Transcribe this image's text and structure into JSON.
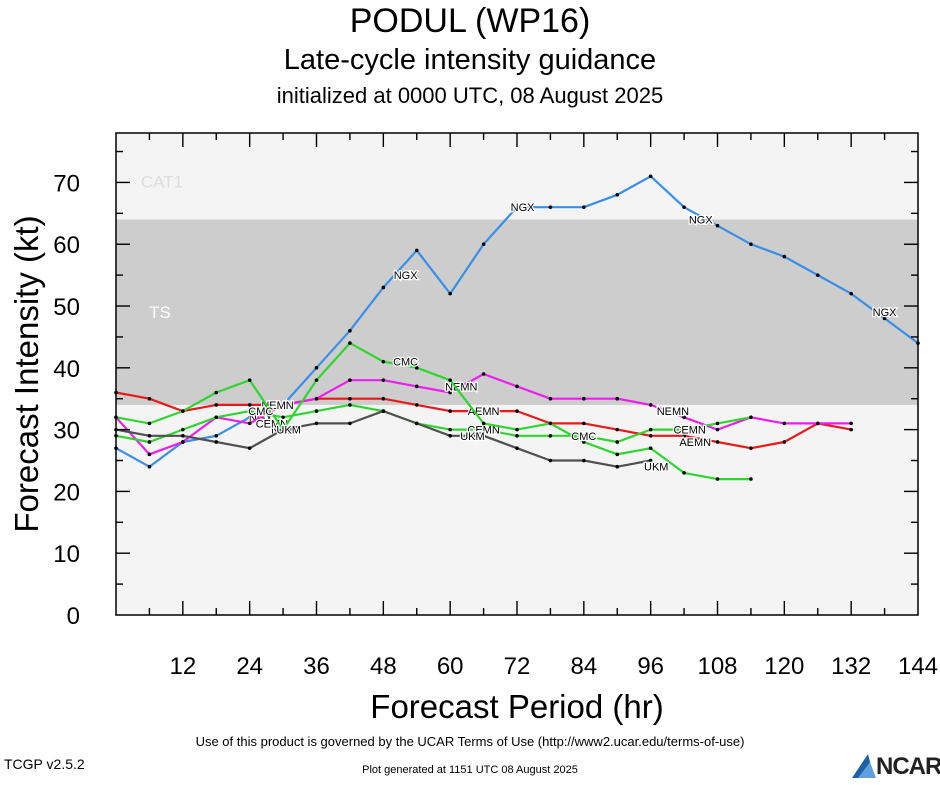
{
  "header": {
    "title": "PODUL (WP16)",
    "subtitle": "Late-cycle intensity guidance",
    "init": "initialized at 0000 UTC, 08 August 2025"
  },
  "footer": {
    "terms": "Use of this product is governed by the UCAR Terms of Use (http://www2.ucar.edu/terms-of-use)",
    "generated": "Plot generated at 1151 UTC   08 August 2025",
    "version": "TCGP v2.5.2",
    "logo": "NCAR"
  },
  "chart_data": {
    "type": "line",
    "xlabel": "Forecast Period (hr)",
    "ylabel": "Forecast Intensity (kt)",
    "xlim": [
      0,
      144
    ],
    "ylim": [
      0,
      78
    ],
    "xticks": [
      12,
      24,
      36,
      48,
      60,
      72,
      84,
      96,
      108,
      120,
      132,
      144
    ],
    "yticks": [
      0,
      10,
      20,
      30,
      40,
      50,
      60,
      70
    ],
    "bands": [
      {
        "label": "TS",
        "from": 34,
        "to": 64,
        "color": "#cdcdcd"
      },
      {
        "label": "CAT1",
        "from": 64,
        "to": 78,
        "color": "#f4f4f4"
      }
    ],
    "series": [
      {
        "name": "NGX",
        "color": "#3a8ee6",
        "x": [
          0,
          6,
          12,
          18,
          24,
          30,
          36,
          42,
          48,
          54,
          60,
          66,
          72,
          78,
          84,
          90,
          96,
          102,
          108,
          114,
          120,
          126,
          132,
          138,
          144
        ],
        "y": [
          27,
          24,
          28,
          29,
          32,
          34,
          40,
          46,
          53,
          59,
          52,
          60,
          66,
          66,
          66,
          68,
          71,
          66,
          63,
          60,
          58,
          55,
          52,
          48,
          44
        ],
        "labels": [
          [
            26,
            32
          ],
          [
            30,
            30
          ],
          [
            52,
            55
          ],
          [
            73,
            66
          ],
          [
            105,
            64
          ],
          [
            138,
            49
          ]
        ]
      },
      {
        "name": "AEMN",
        "color": "#e8191a",
        "x": [
          0,
          6,
          12,
          18,
          24,
          30,
          36,
          42,
          48,
          54,
          60,
          66,
          72,
          78,
          84,
          90,
          96,
          102,
          108,
          114,
          120,
          126,
          132
        ],
        "y": [
          36,
          35,
          33,
          34,
          34,
          34,
          35,
          35,
          35,
          34,
          33,
          33,
          33,
          31,
          31,
          30,
          29,
          29,
          28,
          27,
          28,
          31,
          30
        ],
        "labels": [
          [
            66,
            33
          ],
          [
            104,
            28
          ]
        ]
      },
      {
        "name": "NEMN",
        "color": "#ee1cee",
        "x": [
          0,
          6,
          12,
          18,
          24,
          30,
          36,
          42,
          48,
          54,
          60,
          66,
          72,
          78,
          84,
          90,
          96,
          102,
          108,
          114,
          120,
          126,
          132
        ],
        "y": [
          32,
          26,
          28,
          32,
          31,
          34,
          35,
          38,
          38,
          37,
          36,
          39,
          37,
          35,
          35,
          35,
          34,
          32,
          30,
          32,
          31,
          31,
          31
        ],
        "labels": [
          [
            29,
            34
          ],
          [
            62,
            37
          ],
          [
            100,
            33
          ]
        ]
      },
      {
        "name": "CEMN",
        "color": "#2fd52f",
        "x": [
          0,
          6,
          12,
          18,
          24,
          30,
          36,
          42,
          48,
          54,
          60,
          66,
          72,
          78,
          84,
          90,
          96,
          102,
          108,
          114
        ],
        "y": [
          29,
          28,
          30,
          32,
          33,
          32,
          33,
          34,
          33,
          31,
          30,
          30,
          29,
          29,
          29,
          28,
          30,
          30,
          31,
          32
        ],
        "labels": [
          [
            28,
            31
          ],
          [
            66,
            30
          ],
          [
            103,
            30
          ]
        ]
      },
      {
        "name": "CMC",
        "color": "#2fd52f",
        "x": [
          0,
          6,
          12,
          18,
          24,
          30,
          36,
          42,
          48,
          54,
          60,
          66,
          72,
          78,
          84,
          90,
          96,
          102,
          108,
          114
        ],
        "y": [
          32,
          31,
          33,
          36,
          38,
          30,
          38,
          44,
          41,
          40,
          38,
          31,
          30,
          31,
          28,
          26,
          27,
          23,
          22,
          22
        ],
        "labels": [
          [
            26,
            33
          ],
          [
            52,
            41
          ],
          [
            84,
            29
          ]
        ]
      },
      {
        "name": "UKM",
        "color": "#505050",
        "x": [
          0,
          6,
          12,
          18,
          24,
          30,
          36,
          42,
          48,
          54,
          60,
          66,
          72,
          78,
          84,
          90,
          96
        ],
        "y": [
          30,
          29,
          29,
          28,
          27,
          30,
          31,
          31,
          33,
          31,
          29,
          29,
          27,
          25,
          25,
          24,
          25
        ],
        "labels": [
          [
            31,
            30
          ],
          [
            64,
            29
          ],
          [
            97,
            24
          ]
        ]
      }
    ]
  }
}
